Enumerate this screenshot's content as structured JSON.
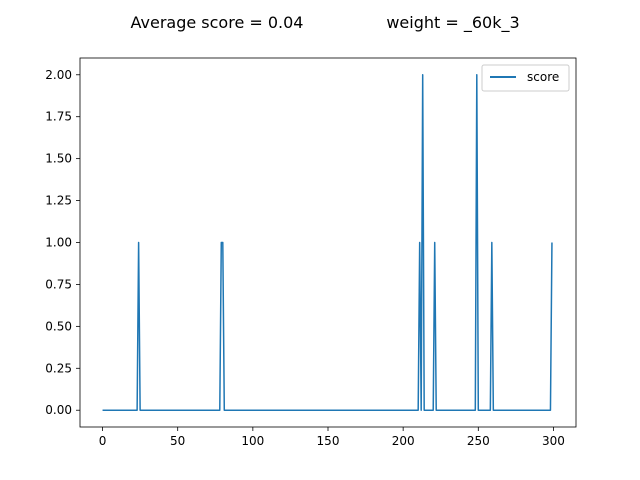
{
  "chart_data": {
    "type": "line",
    "title": "Average score = 0.04",
    "subtitle": "weight = _60k_3",
    "xlabel": "",
    "ylabel": "",
    "xlim": [
      -15,
      315
    ],
    "ylim": [
      -0.1,
      2.1
    ],
    "x_ticks": [
      0,
      50,
      100,
      150,
      200,
      250,
      300
    ],
    "x_tick_labels": [
      "0",
      "50",
      "100",
      "150",
      "200",
      "250",
      "300"
    ],
    "y_ticks": [
      0.0,
      0.25,
      0.5,
      0.75,
      1.0,
      1.25,
      1.5,
      1.75,
      2.0
    ],
    "y_tick_labels": [
      "0.00",
      "0.25",
      "0.50",
      "0.75",
      "1.00",
      "1.25",
      "1.50",
      "1.75",
      "2.00"
    ],
    "grid": false,
    "legend_placement": "top-right",
    "series": [
      {
        "name": "score",
        "color": "#1f77b4",
        "x_range": [
          0,
          299
        ],
        "default_value": 0,
        "nonzero": [
          {
            "x": 24,
            "y": 1
          },
          {
            "x": 79,
            "y": 1
          },
          {
            "x": 80,
            "y": 1
          },
          {
            "x": 211,
            "y": 1
          },
          {
            "x": 213,
            "y": 2
          },
          {
            "x": 221,
            "y": 1
          },
          {
            "x": 249,
            "y": 2
          },
          {
            "x": 259,
            "y": 1
          },
          {
            "x": 299,
            "y": 1
          }
        ]
      }
    ]
  }
}
